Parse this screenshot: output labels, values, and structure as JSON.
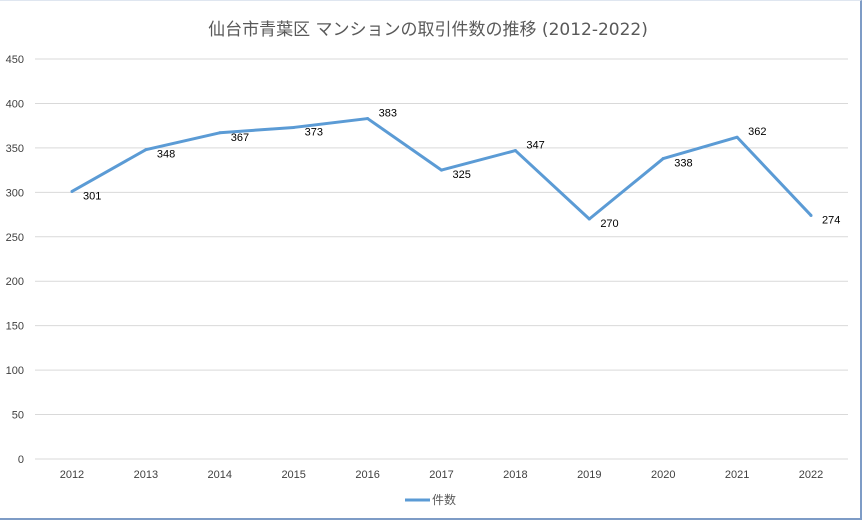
{
  "chart_data": {
    "type": "line",
    "title": "仙台市青葉区 マンションの取引件数の推移 (2012-2022)",
    "categories": [
      "2012",
      "2013",
      "2014",
      "2015",
      "2016",
      "2017",
      "2018",
      "2019",
      "2020",
      "2021",
      "2022"
    ],
    "series": [
      {
        "name": "件数",
        "values": [
          301,
          348,
          367,
          373,
          383,
          325,
          347,
          270,
          338,
          362,
          274
        ],
        "color": "#5b9bd5"
      }
    ],
    "ylim": [
      0,
      450
    ],
    "yticks": [
      0,
      50,
      100,
      150,
      200,
      250,
      300,
      350,
      400,
      450
    ],
    "grid": true,
    "data_labels": true,
    "legend": "bottom"
  }
}
